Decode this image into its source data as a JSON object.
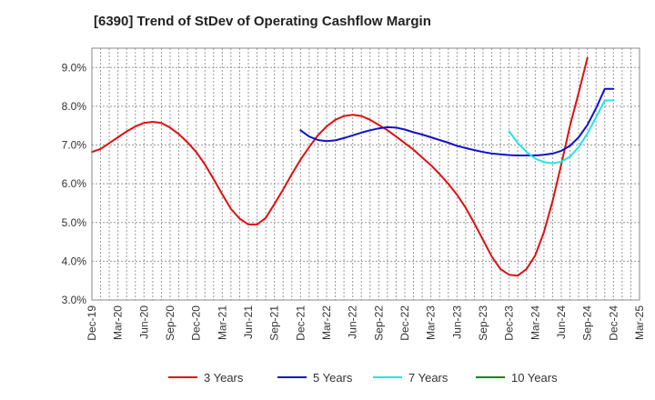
{
  "chart_data": {
    "type": "line",
    "title": "[6390]  Trend of StDev of Operating Cashflow Margin",
    "xlabel": "",
    "ylabel": "",
    "x_ticks": [
      "Dec-19",
      "Mar-20",
      "Jun-20",
      "Sep-20",
      "Dec-20",
      "Mar-21",
      "Jun-21",
      "Sep-21",
      "Dec-21",
      "Mar-22",
      "Jun-22",
      "Sep-22",
      "Dec-22",
      "Mar-23",
      "Jun-23",
      "Sep-23",
      "Dec-23",
      "Mar-24",
      "Jun-24",
      "Sep-24",
      "Dec-24",
      "Mar-25"
    ],
    "y_ticks": [
      "3.0%",
      "4.0%",
      "5.0%",
      "6.0%",
      "7.0%",
      "8.0%",
      "9.0%"
    ],
    "ylim": [
      3.0,
      9.5
    ],
    "grid": true,
    "legend_position": "bottom",
    "series": [
      {
        "name": "3 Years",
        "color": "#dd1111",
        "x": [
          "Dec-19",
          "Jan-20",
          "Feb-20",
          "Mar-20",
          "Apr-20",
          "May-20",
          "Jun-20",
          "Jul-20",
          "Aug-20",
          "Sep-20",
          "Oct-20",
          "Nov-20",
          "Dec-20",
          "Jan-21",
          "Feb-21",
          "Mar-21",
          "Apr-21",
          "May-21",
          "Jun-21",
          "Jul-21",
          "Aug-21",
          "Sep-21",
          "Oct-21",
          "Nov-21",
          "Dec-21",
          "Jan-22",
          "Feb-22",
          "Mar-22",
          "Apr-22",
          "May-22",
          "Jun-22",
          "Jul-22",
          "Aug-22",
          "Sep-22",
          "Oct-22",
          "Nov-22",
          "Dec-22",
          "Jan-23",
          "Feb-23",
          "Mar-23",
          "Apr-23",
          "May-23",
          "Jun-23",
          "Jul-23",
          "Aug-23",
          "Sep-23",
          "Oct-23",
          "Nov-23",
          "Dec-23",
          "Jan-24",
          "Feb-24",
          "Mar-24",
          "Apr-24",
          "May-24",
          "Jun-24",
          "Jul-24",
          "Aug-24",
          "Sep-24"
        ],
        "values": [
          6.82,
          6.9,
          7.05,
          7.2,
          7.35,
          7.48,
          7.57,
          7.6,
          7.57,
          7.45,
          7.28,
          7.07,
          6.82,
          6.5,
          6.12,
          5.73,
          5.35,
          5.1,
          4.95,
          4.95,
          5.12,
          5.48,
          5.85,
          6.25,
          6.62,
          6.95,
          7.25,
          7.48,
          7.65,
          7.75,
          7.78,
          7.75,
          7.65,
          7.52,
          7.38,
          7.22,
          7.05,
          6.88,
          6.68,
          6.48,
          6.25,
          6.0,
          5.72,
          5.38,
          4.98,
          4.55,
          4.12,
          3.8,
          3.65,
          3.63,
          3.8,
          4.15,
          4.75,
          5.55,
          6.5,
          7.5,
          8.35,
          9.25
        ]
      },
      {
        "name": "5 Years",
        "color": "#1111cc",
        "x": [
          "Dec-21",
          "Jan-22",
          "Feb-22",
          "Mar-22",
          "Apr-22",
          "May-22",
          "Jun-22",
          "Jul-22",
          "Aug-22",
          "Sep-22",
          "Oct-22",
          "Nov-22",
          "Dec-22",
          "Jan-23",
          "Feb-23",
          "Mar-23",
          "Apr-23",
          "May-23",
          "Jun-23",
          "Jul-23",
          "Aug-23",
          "Sep-23",
          "Oct-23",
          "Nov-23",
          "Dec-23",
          "Jan-24",
          "Feb-24",
          "Mar-24",
          "Apr-24",
          "May-24",
          "Jun-24",
          "Jul-24",
          "Aug-24",
          "Sep-24",
          "Oct-24",
          "Nov-24",
          "Dec-24"
        ],
        "values": [
          7.38,
          7.22,
          7.13,
          7.1,
          7.12,
          7.18,
          7.25,
          7.32,
          7.38,
          7.43,
          7.46,
          7.45,
          7.4,
          7.33,
          7.27,
          7.2,
          7.13,
          7.06,
          6.98,
          6.92,
          6.87,
          6.82,
          6.78,
          6.76,
          6.74,
          6.73,
          6.73,
          6.73,
          6.75,
          6.78,
          6.85,
          6.98,
          7.2,
          7.52,
          7.95,
          8.45,
          8.45
        ]
      },
      {
        "name": "7 Years",
        "color": "#22e5e5",
        "x": [
          "Dec-23",
          "Jan-24",
          "Feb-24",
          "Mar-24",
          "Apr-24",
          "May-24",
          "Jun-24",
          "Jul-24",
          "Aug-24",
          "Sep-24",
          "Oct-24",
          "Nov-24",
          "Dec-24"
        ],
        "values": [
          7.35,
          7.05,
          6.82,
          6.65,
          6.56,
          6.53,
          6.57,
          6.7,
          6.95,
          7.3,
          7.72,
          8.15,
          8.15
        ]
      },
      {
        "name": "10 Years",
        "color": "#118811",
        "x": [],
        "values": []
      }
    ]
  }
}
